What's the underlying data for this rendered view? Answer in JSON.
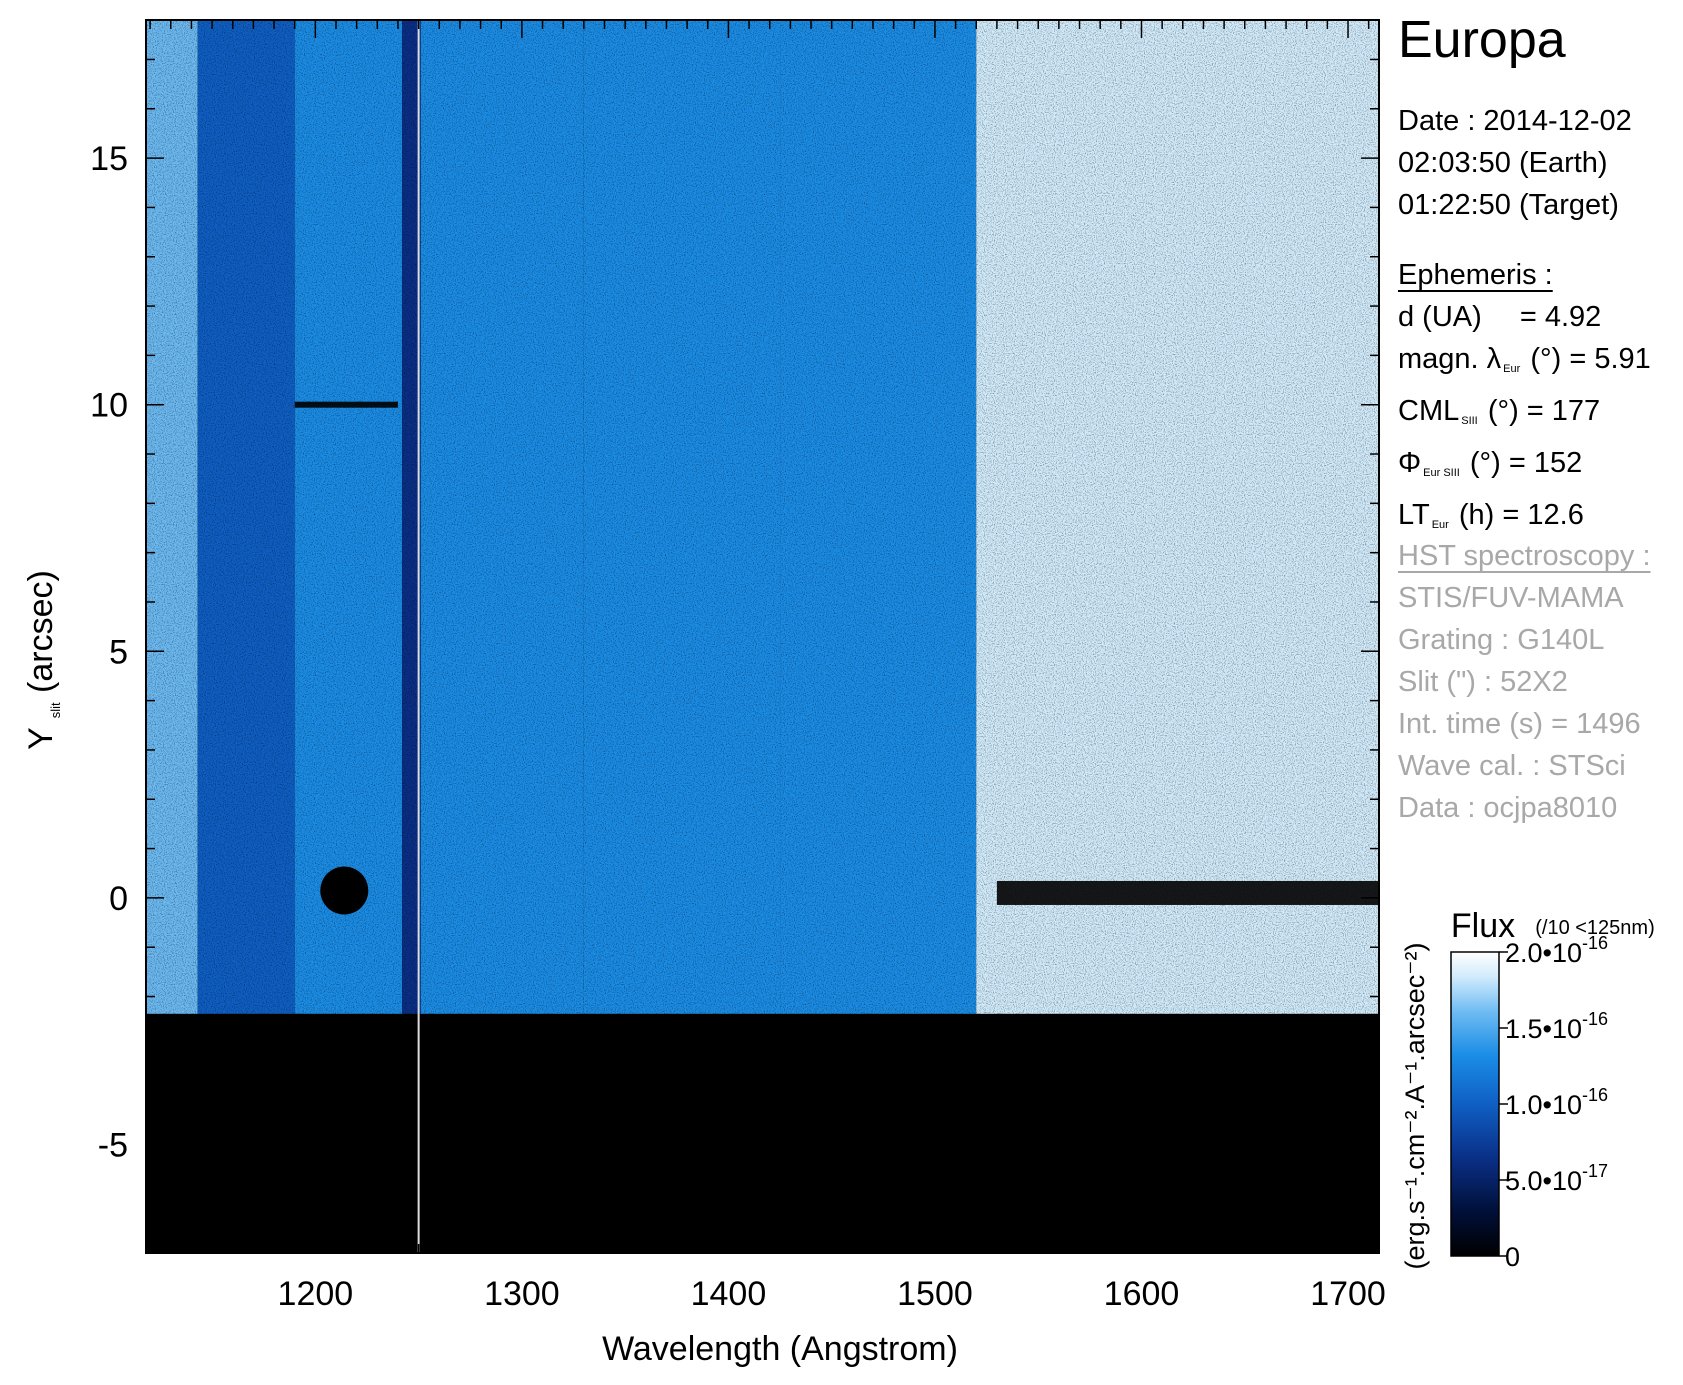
{
  "target": "Europa",
  "observation": {
    "date_line": "Date : 2014-12-02",
    "earth_time": "02:03:50 (Earth)",
    "target_time": "01:22:50 (Target)"
  },
  "ephemeris": {
    "header": "Ephemeris :",
    "distance_label": "d (UA)",
    "distance_value": "= 4.92",
    "lat_label": "magn. λ",
    "lat_sub": "Eur",
    "lat_unit": "(°)",
    "lat_value": "= 5.91",
    "cml_label": "CML",
    "cml_sub": "SIII",
    "cml_unit": "(°)",
    "cml_value": "= 177",
    "phi_label": "Φ",
    "phi_sub": "Eur SIII",
    "phi_unit": "(°)",
    "phi_value": "= 152",
    "lt_label": "LT",
    "lt_sub": "Eur",
    "lt_unit": "(h)",
    "lt_value": "= 12.6"
  },
  "instrument": {
    "header": "HST spectroscopy :",
    "detector": "STIS/FUV-MAMA",
    "grating": "Grating : G140L",
    "slit": "Slit (\") : 52X2",
    "int_time": "Int. time (s) = 1496",
    "wave_cal": "Wave cal. : STSci",
    "data_id": "Data : ocjpa8010"
  },
  "colors": {
    "background": "#000000",
    "saturated": "#ffffff",
    "colormap": [
      "#000000",
      "#01103a",
      "#0a2f86",
      "#0f5fc4",
      "#1b8de6",
      "#6cbaf2",
      "#d2ecfc",
      "#ffffff"
    ],
    "info_text": "#000000",
    "instrument_text": "#a8a8a8"
  },
  "chart_data": {
    "type": "heatmap",
    "title": "",
    "xlabel": "Wavelength (Angstrom)",
    "ylabel": "Y",
    "ylabel_sub": "slit",
    "ylabel_unit": "(arcsec)",
    "xlim": [
      1118,
      1715
    ],
    "ylim": [
      -7.2,
      17.8
    ],
    "x_ticks": [
      1200,
      1300,
      1400,
      1500,
      1600,
      1700
    ],
    "y_ticks": [
      -5,
      0,
      5,
      10,
      15
    ],
    "x_minor_step": 10,
    "y_minor_step": 1,
    "grid": false,
    "slit_bottom_y": -2.35,
    "vertical_line_x": 1250,
    "planet_disk": {
      "x": 1214,
      "y": 0.15
    },
    "columns": [
      {
        "x0": 1118,
        "x1": 1143,
        "level": 0.78
      },
      {
        "x0": 1143,
        "x1": 1190,
        "level": 0.4
      },
      {
        "x0": 1190,
        "x1": 1242,
        "level": 0.62
      },
      {
        "x0": 1242,
        "x1": 1251,
        "level": 0.3
      },
      {
        "x0": 1251,
        "x1": 1330,
        "level": 0.55
      },
      {
        "x0": 1330,
        "x1": 1425,
        "level": 0.6
      },
      {
        "x0": 1425,
        "x1": 1520,
        "level": 0.55
      },
      {
        "x0": 1520,
        "x1": 1600,
        "level": 0.82
      },
      {
        "x0": 1600,
        "x1": 1715,
        "level": 0.84
      }
    ],
    "emission_features": [
      {
        "name": "dark row",
        "x0": 1190,
        "x1": 1240,
        "y": 10.0
      },
      {
        "name": "dark band",
        "x0": 1530,
        "x1": 1715,
        "y": 0.1
      }
    ],
    "colorbar": {
      "title": "Flux",
      "title_note": "(/10 <125nm)",
      "label": "(erg.s⁻¹.cm⁻².A⁻¹.arcsec⁻²)",
      "range": [
        0,
        2e-16
      ],
      "ticks": [
        {
          "value": 0,
          "label": "0"
        },
        {
          "value": 5e-17,
          "label": "5.0•10",
          "exp": "-17"
        },
        {
          "value": 1e-16,
          "label": "1.0•10",
          "exp": "-16"
        },
        {
          "value": 1.5e-16,
          "label": "1.5•10",
          "exp": "-16"
        },
        {
          "value": 2e-16,
          "label": "2.0•10",
          "exp": "-16"
        }
      ]
    }
  }
}
